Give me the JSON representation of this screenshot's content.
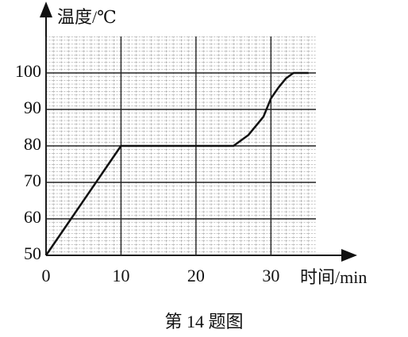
{
  "chart_data": {
    "type": "line",
    "x_label": "时间/min",
    "y_label": "温度/℃",
    "caption": "第 14 题图",
    "x": [
      0,
      10,
      25,
      27,
      29,
      30,
      31,
      32,
      33,
      35
    ],
    "values": [
      50,
      80,
      80,
      83,
      88,
      93,
      96,
      98.5,
      100,
      100
    ],
    "color": "#111111",
    "xlim": [
      0,
      36
    ],
    "ylim": [
      50,
      110
    ],
    "xticks": [
      0,
      10,
      20,
      30
    ],
    "yticks": [
      50,
      60,
      70,
      80,
      90,
      100
    ],
    "grid": true
  }
}
